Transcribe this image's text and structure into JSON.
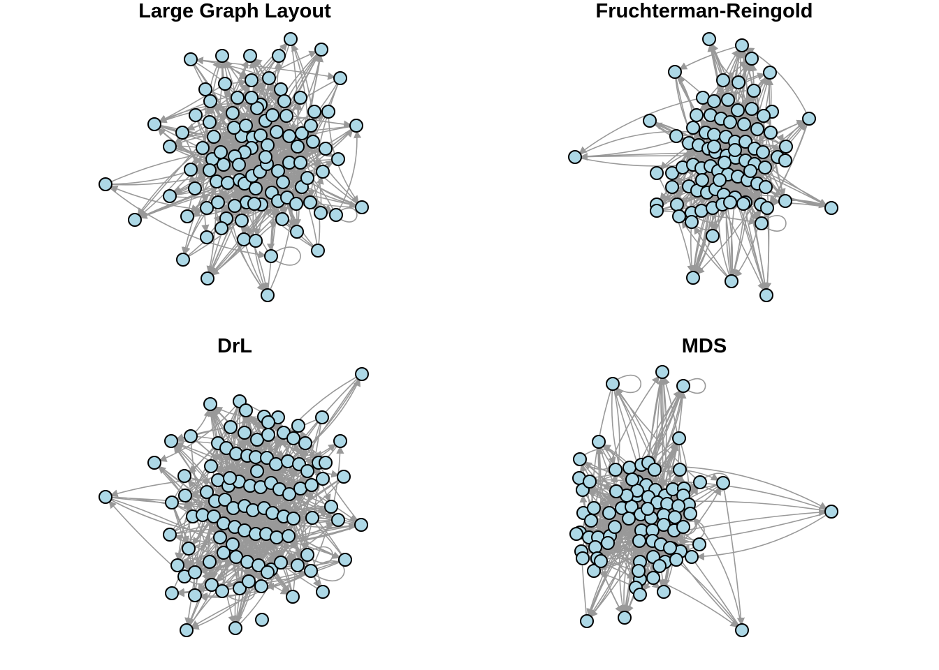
{
  "figure": {
    "panels": [
      {
        "title": "Large Graph Layout"
      },
      {
        "title": "Fruchterman-Reingold"
      },
      {
        "title": "DrL"
      },
      {
        "title": "MDS"
      }
    ]
  },
  "colors": {
    "node_fill": "#ADD8E6",
    "node_stroke": "#000000",
    "edge": "#999999"
  }
}
